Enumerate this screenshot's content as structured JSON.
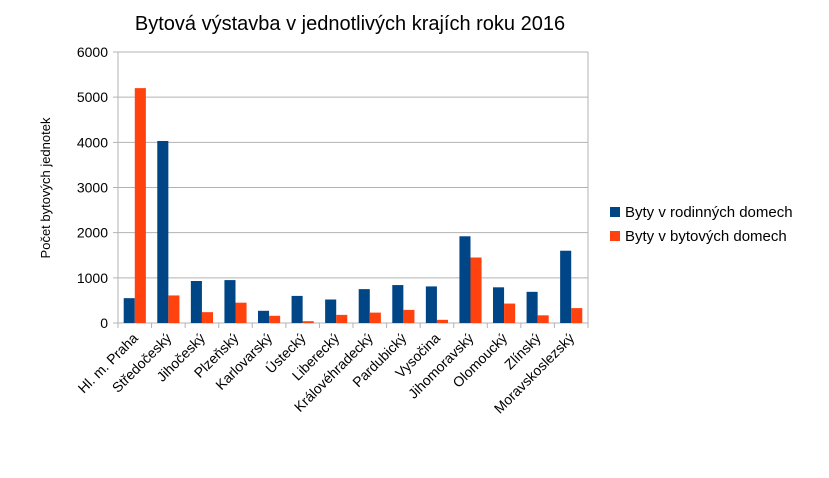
{
  "chart_data": {
    "type": "bar",
    "title": "Bytová výstavba v jednotlivých krajích roku 2016",
    "xlabel": "",
    "ylabel": "Počet bytových jednotek",
    "ylim": [
      0,
      6000
    ],
    "yticks": [
      0,
      1000,
      2000,
      3000,
      4000,
      5000,
      6000
    ],
    "grid": true,
    "legend_position": "right",
    "categories": [
      "Hl. m. Praha",
      "Středočeský",
      "Jihočeský",
      "Plzeňský",
      "Karlovarský",
      "Ústecký",
      "Liberecký",
      "Královéhradecký",
      "Pardubický",
      "Vysočina",
      "Jihomoravský",
      "Olomoucký",
      "Zlínský",
      "Moravskoslezský"
    ],
    "series": [
      {
        "name": "Byty v rodinných domech",
        "color": "#004586",
        "values": [
          550,
          4030,
          930,
          950,
          270,
          600,
          520,
          750,
          840,
          810,
          1920,
          790,
          690,
          1600
        ]
      },
      {
        "name": "Byty v bytových domech",
        "color": "#ff420e",
        "values": [
          5200,
          610,
          240,
          450,
          160,
          40,
          180,
          230,
          290,
          70,
          1450,
          430,
          170,
          330
        ]
      }
    ]
  }
}
